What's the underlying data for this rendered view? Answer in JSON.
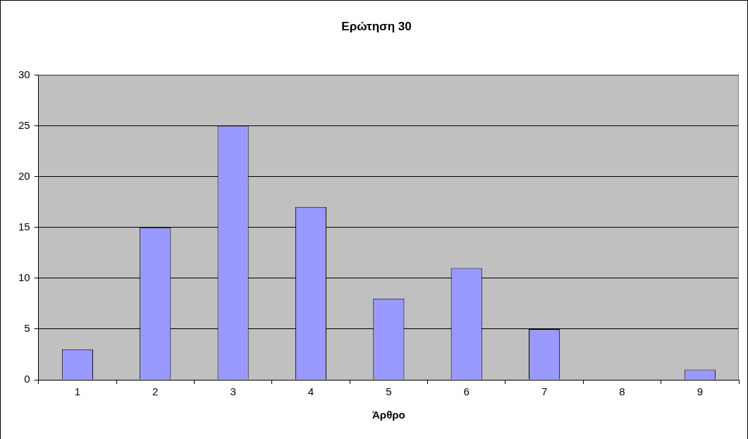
{
  "chart_data": {
    "type": "bar",
    "title": "Ερώτηση 30",
    "xlabel": "Άρθρο",
    "categories": [
      "1",
      "2",
      "3",
      "4",
      "5",
      "6",
      "7",
      "8",
      "9"
    ],
    "values": [
      3,
      15,
      25,
      17,
      8,
      11,
      5,
      0,
      1
    ],
    "color": "#9999ff",
    "ylim": [
      0,
      30
    ],
    "yticks": [
      0,
      5,
      10,
      15,
      20,
      25,
      30
    ],
    "grid": "y",
    "legend": false
  }
}
